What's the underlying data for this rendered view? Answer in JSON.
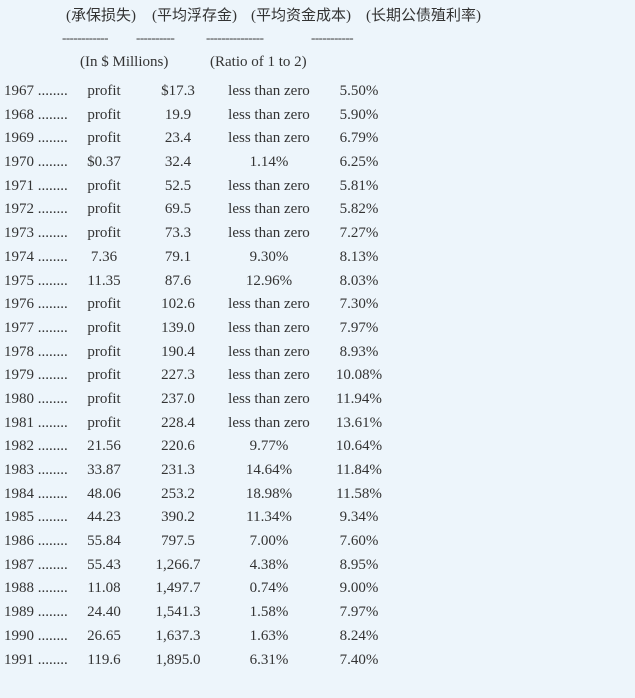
{
  "header": {
    "col_loss": "(承保损失)",
    "col_float": "(平均浮存金)",
    "col_cost": "(平均资金成本)",
    "col_yield": "(长期公债殖利率)"
  },
  "dashes": {
    "loss": "------------",
    "float": "----------",
    "cost": "---------------",
    "yield": "-----------"
  },
  "units": {
    "millions": "(In $ Millions)",
    "ratio": "(Ratio of 1 to 2)"
  },
  "rows": [
    {
      "year": "1967 ........",
      "loss": "profit",
      "float": "$17.3",
      "cost": "less than zero",
      "yield": "5.50%"
    },
    {
      "year": "1968 ........",
      "loss": "profit",
      "float": "19.9",
      "cost": "less than zero",
      "yield": "5.90%"
    },
    {
      "year": "1969 ........",
      "loss": "profit",
      "float": "23.4",
      "cost": "less than zero",
      "yield": "6.79%"
    },
    {
      "year": "1970 ........",
      "loss": "$0.37",
      "float": "32.4",
      "cost": "1.14%",
      "yield": "6.25%"
    },
    {
      "year": "1971 ........",
      "loss": "profit",
      "float": "52.5",
      "cost": "less than zero",
      "yield": "5.81%"
    },
    {
      "year": "1972 ........",
      "loss": "profit",
      "float": "69.5",
      "cost": "less than zero",
      "yield": "5.82%"
    },
    {
      "year": "1973 ........",
      "loss": "profit",
      "float": "73.3",
      "cost": "less than zero",
      "yield": "7.27%"
    },
    {
      "year": "1974 ........",
      "loss": "7.36",
      "float": "79.1",
      "cost": "9.30%",
      "yield": "8.13%"
    },
    {
      "year": "1975 ........",
      "loss": "11.35",
      "float": "87.6",
      "cost": "12.96%",
      "yield": "8.03%"
    },
    {
      "year": "1976 ........",
      "loss": "profit",
      "float": "102.6",
      "cost": "less than zero",
      "yield": "7.30%"
    },
    {
      "year": "1977 ........",
      "loss": "profit",
      "float": "139.0",
      "cost": "less than zero",
      "yield": "7.97%"
    },
    {
      "year": "1978 ........",
      "loss": "profit",
      "float": "190.4",
      "cost": "less than zero",
      "yield": "8.93%"
    },
    {
      "year": "1979 ........",
      "loss": "profit",
      "float": "227.3",
      "cost": "less than zero",
      "yield": "10.08%"
    },
    {
      "year": "1980 ........",
      "loss": "profit",
      "float": "237.0",
      "cost": "less than zero",
      "yield": "11.94%"
    },
    {
      "year": "1981 ........",
      "loss": "profit",
      "float": "228.4",
      "cost": "less than zero",
      "yield": "13.61%"
    },
    {
      "year": "1982 ........",
      "loss": "21.56",
      "float": "220.6",
      "cost": "9.77%",
      "yield": "10.64%"
    },
    {
      "year": "1983 ........",
      "loss": "33.87",
      "float": "231.3",
      "cost": "14.64%",
      "yield": "11.84%"
    },
    {
      "year": "1984 ........",
      "loss": "48.06",
      "float": "253.2",
      "cost": "18.98%",
      "yield": "11.58%"
    },
    {
      "year": "1985 ........",
      "loss": "44.23",
      "float": "390.2",
      "cost": "11.34%",
      "yield": "9.34%"
    },
    {
      "year": "1986 ........",
      "loss": "55.84",
      "float": "797.5",
      "cost": "7.00%",
      "yield": "7.60%"
    },
    {
      "year": "1987 ........",
      "loss": "55.43",
      "float": "1,266.7",
      "cost": "4.38%",
      "yield": "8.95%"
    },
    {
      "year": "1988 ........",
      "loss": "11.08",
      "float": "1,497.7",
      "cost": "0.74%",
      "yield": "9.00%"
    },
    {
      "year": "1989 ........",
      "loss": "24.40",
      "float": "1,541.3",
      "cost": "1.58%",
      "yield": "7.97%"
    },
    {
      "year": "1990 ........",
      "loss": "26.65",
      "float": "1,637.3",
      "cost": "1.63%",
      "yield": "8.24%"
    },
    {
      "year": "1991 ........",
      "loss": "119.6",
      "float": "1,895.0",
      "cost": "6.31%",
      "yield": "7.40%"
    }
  ]
}
